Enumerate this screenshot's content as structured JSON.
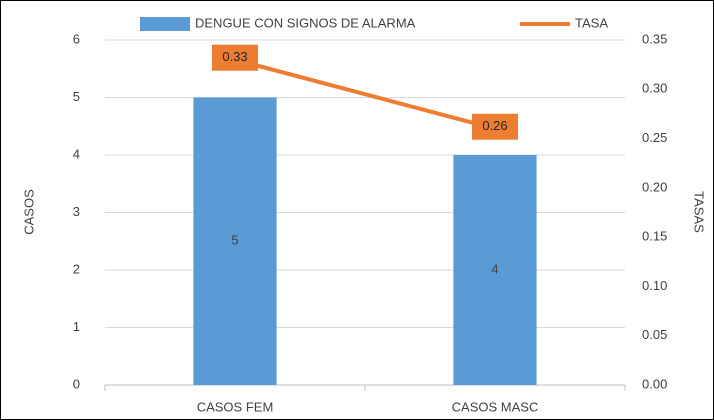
{
  "chart_data": {
    "type": "bar",
    "categories": [
      "CASOS FEM",
      "CASOS MASC"
    ],
    "series": [
      {
        "name": "DENGUE CON SIGNOS DE ALARMA",
        "color": "#5b9bd5",
        "values": [
          5,
          4
        ]
      },
      {
        "name": "TASA",
        "color": "#ed7d31",
        "values": [
          0.33,
          0.26
        ],
        "axis": "y2",
        "type": "line"
      }
    ],
    "ylabel": "CASOS",
    "y2label": "TASAS",
    "ylim": [
      0,
      6
    ],
    "yticks": [
      0,
      1,
      2,
      3,
      4,
      5,
      6
    ],
    "y2lim": [
      0,
      0.35
    ],
    "y2ticks": [
      {
        "value": 0,
        "label": "0.00"
      },
      {
        "value": 0.05,
        "label": "0.05"
      },
      {
        "value": 0.1,
        "label": "0.10"
      },
      {
        "value": 0.15,
        "label": "0.15"
      },
      {
        "value": 0.2,
        "label": "0.20"
      },
      {
        "value": 0.25,
        "label": "0.25"
      },
      {
        "value": 0.3,
        "label": "0.30"
      },
      {
        "value": 0.35,
        "label": "0.35"
      }
    ],
    "grid": true,
    "legend": "top"
  }
}
